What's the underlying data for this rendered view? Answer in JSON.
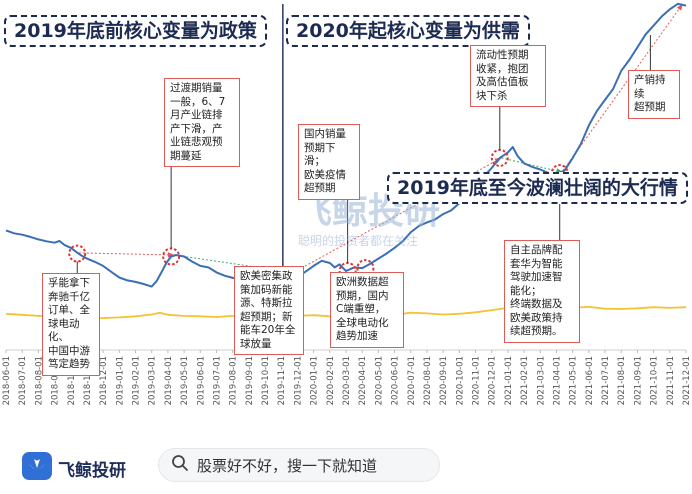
{
  "chart_data": {
    "type": "line",
    "x_ticks": [
      "2018-06-01",
      "2018-07-01",
      "2018-08-01",
      "2018-09-01",
      "2018-10-01",
      "2018-11-01",
      "2018-12-01",
      "2019-01-01",
      "2019-02-01",
      "2019-03-01",
      "2019-04-01",
      "2019-05-01",
      "2019-06-01",
      "2019-07-01",
      "2019-08-01",
      "2019-09-01",
      "2019-10-01",
      "2019-11-01",
      "2019-12-01",
      "2020-01-01",
      "2020-02-01",
      "2020-03-01",
      "2020-04-01",
      "2020-05-01",
      "2020-06-01",
      "2020-07-01",
      "2020-08-01",
      "2020-09-01",
      "2020-10-01",
      "2020-11-01",
      "2020-12-01",
      "2021-01-01",
      "2021-02-01",
      "2021-03-01",
      "2021-04-01",
      "2021-05-01",
      "2021-06-01",
      "2021-07-01",
      "2021-08-01",
      "2021-09-01",
      "2021-10-01",
      "2021-11-01",
      "2021-12-01"
    ],
    "series": [
      {
        "color": "#3a6fb5",
        "points": [
          [
            0,
            330
          ],
          [
            0.5,
            322
          ],
          [
            1,
            318
          ],
          [
            1.5,
            312
          ],
          [
            2,
            305
          ],
          [
            2.5,
            300
          ],
          [
            3,
            296
          ],
          [
            3.3,
            301
          ],
          [
            3.6,
            290
          ],
          [
            4,
            282
          ],
          [
            4.3,
            272
          ],
          [
            4.6,
            262
          ],
          [
            5,
            252
          ],
          [
            5.5,
            243
          ],
          [
            6,
            232
          ],
          [
            6.3,
            222
          ],
          [
            6.6,
            212
          ],
          [
            7,
            200
          ],
          [
            7.5,
            192
          ],
          [
            8,
            188
          ],
          [
            8.5,
            182
          ],
          [
            9,
            175
          ],
          [
            9.3,
            190
          ],
          [
            9.6,
            214
          ],
          [
            9.9,
            240
          ],
          [
            10.2,
            258
          ],
          [
            10.5,
            262
          ],
          [
            11,
            258
          ],
          [
            11.5,
            244
          ],
          [
            12,
            232
          ],
          [
            12.5,
            228
          ],
          [
            13,
            214
          ],
          [
            13.5,
            205
          ],
          [
            14,
            199
          ],
          [
            14.5,
            194
          ],
          [
            15,
            192
          ],
          [
            15.5,
            198
          ],
          [
            16,
            209
          ],
          [
            16.5,
            205
          ],
          [
            17,
            199
          ],
          [
            17.5,
            195
          ],
          [
            18,
            203
          ],
          [
            18.5,
            216
          ],
          [
            19,
            232
          ],
          [
            19.5,
            246
          ],
          [
            20,
            240
          ],
          [
            20.3,
            228
          ],
          [
            20.6,
            236
          ],
          [
            21,
            218
          ],
          [
            21.5,
            228
          ],
          [
            22,
            226
          ],
          [
            22.5,
            238
          ],
          [
            23,
            252
          ],
          [
            23.5,
            266
          ],
          [
            24,
            282
          ],
          [
            24.5,
            300
          ],
          [
            25,
            325
          ],
          [
            25.5,
            342
          ],
          [
            26,
            352
          ],
          [
            26.5,
            360
          ],
          [
            27,
            375
          ],
          [
            27.5,
            385
          ],
          [
            28,
            405
          ],
          [
            28.5,
            432
          ],
          [
            29,
            455
          ],
          [
            29.5,
            478
          ],
          [
            30,
            502
          ],
          [
            30.5,
            530
          ],
          [
            31,
            545
          ],
          [
            31.3,
            560
          ],
          [
            31.6,
            535
          ],
          [
            32,
            515
          ],
          [
            32.5,
            505
          ],
          [
            33,
            498
          ],
          [
            33.5,
            488
          ],
          [
            34,
            486
          ],
          [
            34.5,
            495
          ],
          [
            35,
            530
          ],
          [
            35.5,
            568
          ],
          [
            36,
            620
          ],
          [
            36.5,
            660
          ],
          [
            37,
            690
          ],
          [
            37.5,
            720
          ],
          [
            38,
            770
          ],
          [
            38.5,
            800
          ],
          [
            39,
            835
          ],
          [
            39.5,
            870
          ],
          [
            40,
            895
          ],
          [
            40.5,
            920
          ],
          [
            41,
            940
          ],
          [
            41.5,
            955
          ],
          [
            42,
            950
          ]
        ]
      },
      {
        "color": "#f5c232",
        "points": [
          [
            0,
            100
          ],
          [
            1,
            97
          ],
          [
            2,
            94
          ],
          [
            3,
            91
          ],
          [
            4,
            90
          ],
          [
            5,
            89
          ],
          [
            6,
            88
          ],
          [
            7,
            90
          ],
          [
            8,
            93
          ],
          [
            9,
            98
          ],
          [
            9.5,
            103
          ],
          [
            10,
            97
          ],
          [
            11,
            94
          ],
          [
            12,
            93
          ],
          [
            13,
            91
          ],
          [
            14,
            94
          ],
          [
            15,
            92
          ],
          [
            16,
            90
          ],
          [
            17,
            91
          ],
          [
            18,
            94
          ],
          [
            19,
            96
          ],
          [
            20,
            93
          ],
          [
            21,
            86
          ],
          [
            22,
            89
          ],
          [
            23,
            92
          ],
          [
            24,
            97
          ],
          [
            25,
            103
          ],
          [
            26,
            101
          ],
          [
            27,
            98
          ],
          [
            28,
            100
          ],
          [
            29,
            104
          ],
          [
            30,
            110
          ],
          [
            31,
            116
          ],
          [
            32,
            111
          ],
          [
            33,
            109
          ],
          [
            34,
            112
          ],
          [
            35,
            116
          ],
          [
            36,
            119
          ],
          [
            37,
            114
          ],
          [
            38,
            113
          ],
          [
            39,
            115
          ],
          [
            40,
            118
          ],
          [
            41,
            116
          ],
          [
            42,
            118
          ]
        ]
      }
    ],
    "annotations": [
      {
        "lines": [
          "孚能拿下",
          "奔驰千亿",
          "订单、全",
          "球电动化、",
          "中国中游",
          "笃定趋势"
        ]
      },
      {
        "lines": [
          "过渡期销量",
          "一般，6、7",
          "月产业链排",
          "产下滑，产",
          "业链悲观预",
          "期蔓延"
        ]
      },
      {
        "lines": [
          "欧美密集政",
          "策加码新能",
          "源、特斯拉",
          "超预期；新",
          "能车20年全",
          "球放量"
        ]
      },
      {
        "lines": [
          "国内销量",
          "预期下滑；",
          "欧美疫情",
          "超预期"
        ]
      },
      {
        "lines": [
          "欧洲数据超",
          "预期，国内",
          "C端重塑，",
          "全球电动化",
          "趋势加速"
        ]
      },
      {
        "lines": [
          "流动性预期",
          "收紧，抱团",
          "及高估值板",
          "块下杀"
        ]
      },
      {
        "lines": [
          "自主品牌配",
          "套华为智能",
          "驾驶加速智",
          "能化；",
          "终端数据及",
          "欧美政策持",
          "续超预期。"
        ]
      },
      {
        "lines": [
          "产销持续",
          "超预期"
        ]
      }
    ],
    "headlines": [
      "2019年底前核心变量为政策",
      "2020年起核心变量为供需",
      "2019年底至今波澜壮阔的大行情"
    ]
  },
  "watermark": {
    "brand": "飞鲸投研",
    "slogan": "聪明的投资者都在关注"
  },
  "footer": {
    "brand": "飞鲸投研",
    "search_placeholder": "股票好不好，搜一下就知道"
  },
  "colors": {
    "accent": "#3a6fb5",
    "secondary": "#f5c232",
    "annotation_border": "#e05a58",
    "headline": "#1d2b52"
  }
}
